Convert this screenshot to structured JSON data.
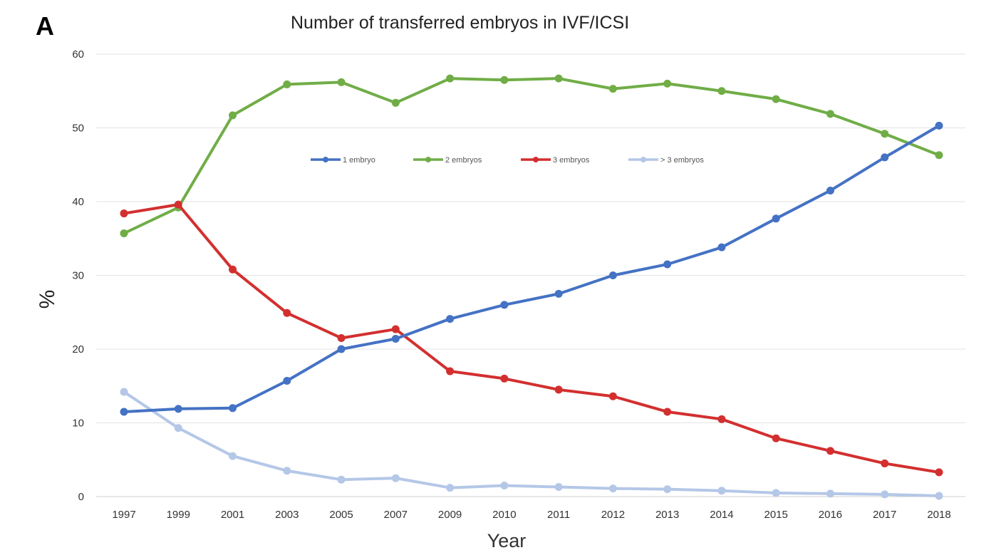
{
  "panel_label": "A",
  "chart_data": {
    "type": "line",
    "title": "Number of transferred embryos in IVF/ICSI",
    "xlabel": "Year",
    "ylabel": "%",
    "categories": [
      "1997",
      "1999",
      "2001",
      "2003",
      "2005",
      "2007",
      "2009",
      "2010",
      "2011",
      "2012",
      "2013",
      "2014",
      "2015",
      "2016",
      "2017",
      "2018"
    ],
    "ylim": [
      0,
      60
    ],
    "yticks": [
      0,
      10,
      20,
      30,
      40,
      50,
      60
    ],
    "grid": true,
    "legend_position": "top-center",
    "series": [
      {
        "name": "1 embryo",
        "color": "#4472c4",
        "values": [
          11.5,
          11.9,
          12.0,
          15.7,
          20.0,
          21.4,
          24.1,
          26.0,
          27.5,
          30.0,
          31.5,
          33.8,
          37.7,
          41.5,
          46.0,
          50.3
        ]
      },
      {
        "name": "2 embryos",
        "color": "#70ad47",
        "values": [
          35.7,
          39.2,
          51.7,
          55.9,
          56.2,
          53.4,
          56.7,
          56.5,
          56.7,
          55.3,
          56.0,
          55.0,
          53.9,
          51.9,
          49.2,
          46.3
        ]
      },
      {
        "name": "3 embryos",
        "color": "#d32f2f",
        "values": [
          38.4,
          39.6,
          30.8,
          24.9,
          21.5,
          22.7,
          17.0,
          16.0,
          14.5,
          13.6,
          11.5,
          10.5,
          7.9,
          6.2,
          4.5,
          3.3
        ]
      },
      {
        "name": "> 3 embryos",
        "color": "#b4c7e7",
        "values": [
          14.2,
          9.3,
          5.5,
          3.5,
          2.3,
          2.5,
          1.2,
          1.5,
          1.3,
          1.1,
          1.0,
          0.8,
          0.5,
          0.4,
          0.3,
          0.1
        ]
      }
    ]
  }
}
